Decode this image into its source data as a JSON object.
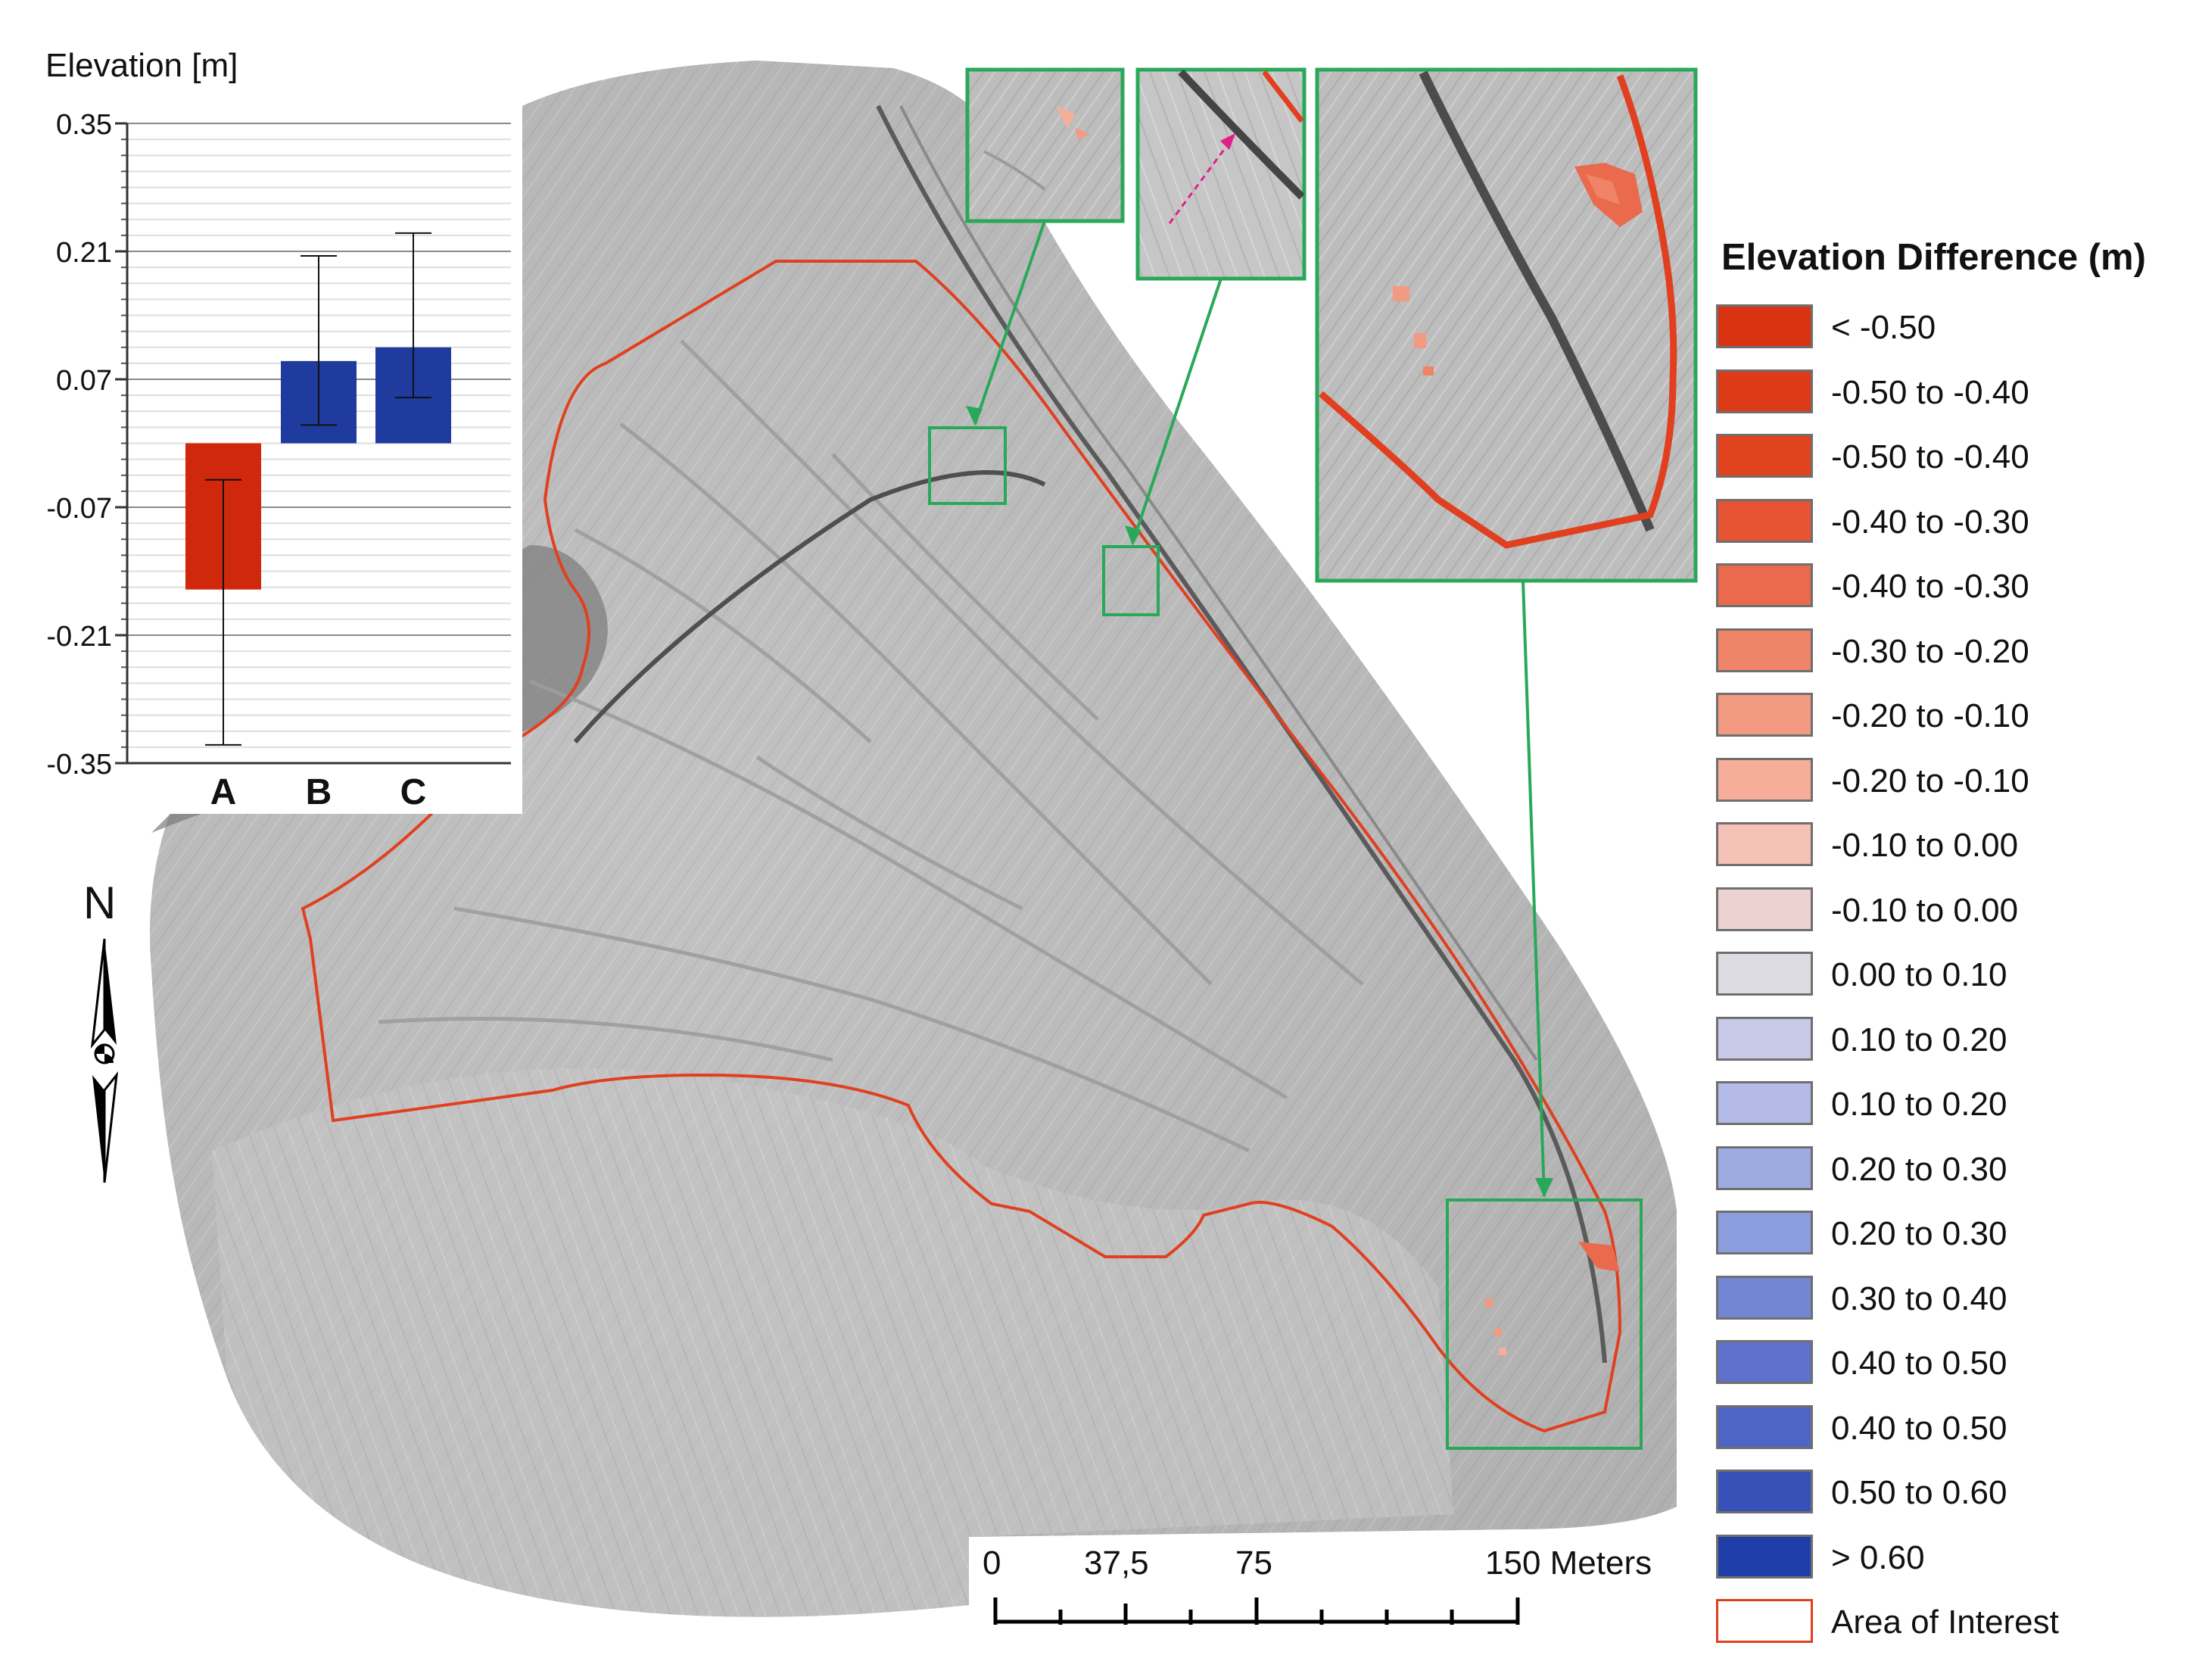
{
  "inset_chart": {
    "title": "Elevation [m]",
    "chart_data": {
      "type": "bar",
      "title": "",
      "ylabel": "Elevation [m]",
      "xlabel": "",
      "categories": [
        "A",
        "B",
        "C"
      ],
      "values": [
        -0.16,
        0.09,
        0.105
      ],
      "error_low": [
        -0.33,
        0.02,
        0.05
      ],
      "error_high": [
        -0.04,
        0.205,
        0.23
      ],
      "ylim": [
        -0.35,
        0.35
      ],
      "yticks": [
        "0.35",
        "0.21",
        "0.07",
        "-0.07",
        "-0.21",
        "-0.35"
      ],
      "ytick_values": [
        0.35,
        0.21,
        0.07,
        -0.07,
        -0.21,
        -0.35
      ],
      "colors": [
        "#d0280c",
        "#1f3b9e",
        "#1f3b9e"
      ],
      "grid": true
    }
  },
  "legend": {
    "title": "Elevation Difference (m)",
    "items": [
      {
        "label": "< -0.50",
        "color": "#d93312"
      },
      {
        "label": "-0.50 to -0.40",
        "color": "#dd3a18"
      },
      {
        "label": "-0.50 to -0.40",
        "color": "#e1431f"
      },
      {
        "label": "-0.40 to -0.30",
        "color": "#e65434"
      },
      {
        "label": "-0.40 to -0.30",
        "color": "#ea6a4e"
      },
      {
        "label": "-0.30 to -0.20",
        "color": "#f08468"
      },
      {
        "label": "-0.20 to -0.10",
        "color": "#f39a82"
      },
      {
        "label": "-0.20 to -0.10",
        "color": "#f6ae9b"
      },
      {
        "label": "-0.10 to 0.00",
        "color": "#f5c2b8"
      },
      {
        "label": "-0.10 to 0.00",
        "color": "#ecd3d2"
      },
      {
        "label": "0.00 to 0.10",
        "color": "#dcdce2"
      },
      {
        "label": "0.10 to 0.20",
        "color": "#c8cbe8"
      },
      {
        "label": "0.10 to 0.20",
        "color": "#b3bbe6"
      },
      {
        "label": "0.20 to 0.30",
        "color": "#9eaae2"
      },
      {
        "label": "0.20 to 0.30",
        "color": "#8c9ddd"
      },
      {
        "label": "0.30 to 0.40",
        "color": "#7386d4"
      },
      {
        "label": "0.40 to 0.50",
        "color": "#5e72cb"
      },
      {
        "label": "0.40 to 0.50",
        "color": "#4f65c5"
      },
      {
        "label": "0.50 to 0.60",
        "color": "#3751b9"
      },
      {
        "label": "> 0.60",
        "color": "#1f3ea8"
      },
      {
        "label": "Area of Interest",
        "color": "#ffffff",
        "outline": "#e0401f"
      }
    ]
  },
  "scale_bar": {
    "labels": [
      "0",
      "37,5",
      "75",
      "150 Meters"
    ]
  },
  "north_arrow": {
    "label": "N"
  },
  "colors": {
    "aoi_outline": "#e0401f",
    "inset_box": "#2aa85a",
    "hillshade": "#b9b9b9"
  }
}
